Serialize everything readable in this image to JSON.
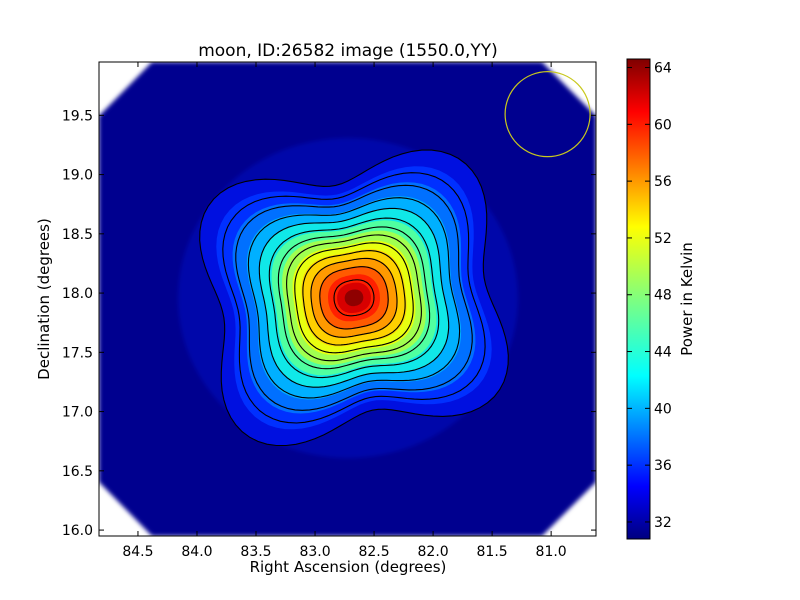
{
  "chart_data": [
    {
      "type": "heatmap",
      "title": "moon, ID:26582 image (1550.0,YY)",
      "xlabel": "Right Ascension (degrees)",
      "ylabel": "Declination (degrees)",
      "xlim": [
        84.83,
        80.62
      ],
      "ylim": [
        15.95,
        19.95
      ],
      "x_ticks": [
        84.5,
        84.0,
        83.5,
        83.0,
        82.5,
        82.0,
        81.5,
        81.0
      ],
      "x_tick_labels": [
        "84.5",
        "84.0",
        "83.5",
        "83.0",
        "82.5",
        "82.0",
        "81.5",
        "81.0"
      ],
      "y_ticks": [
        16.0,
        16.5,
        17.0,
        17.5,
        18.0,
        18.5,
        19.0,
        19.5
      ],
      "y_tick_labels": [
        "16.0",
        "16.5",
        "17.0",
        "17.5",
        "18.0",
        "18.5",
        "19.0",
        "19.5"
      ],
      "grid": false,
      "colormap": "jet",
      "peak": {
        "ra": 82.67,
        "dec": 17.96,
        "value": 64.5
      },
      "background_value": 31.5,
      "contours": [
        33.5,
        36.0,
        38.5,
        41.0,
        43.5,
        46.0,
        48.5,
        51.0,
        53.5,
        56.0,
        58.5,
        62.0
      ],
      "beam_circle": {
        "ra": 81.03,
        "dec": 19.51,
        "radius_deg": 0.36,
        "color": "#c8c81e"
      },
      "colorbar": {
        "label": "Power in Kelvin",
        "range": [
          30.8,
          64.6
        ],
        "ticks": [
          32,
          36,
          40,
          44,
          48,
          52,
          56,
          60,
          64
        ],
        "tick_labels": [
          "32",
          "36",
          "40",
          "44",
          "48",
          "52",
          "56",
          "60",
          "64"
        ]
      }
    }
  ]
}
